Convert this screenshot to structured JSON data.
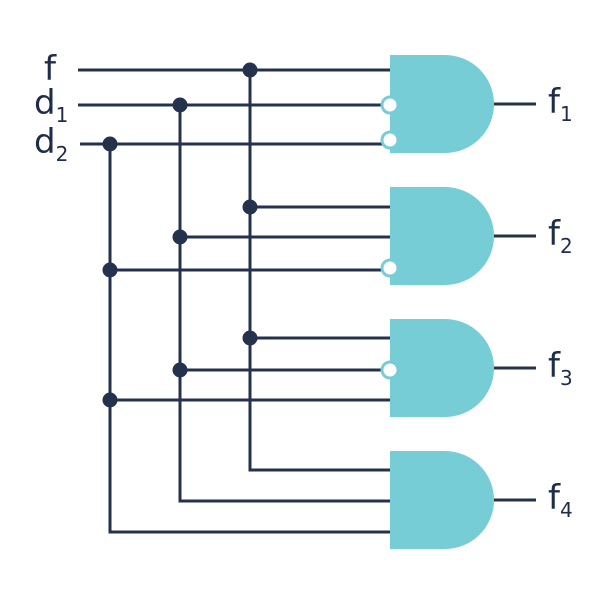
{
  "colors": {
    "wire": "#24324d",
    "gate": "#76cdd6",
    "bubble": "#ffffff"
  },
  "inputs": [
    {
      "name": "f",
      "sub": ""
    },
    {
      "name": "d",
      "sub": "1"
    },
    {
      "name": "d",
      "sub": "2"
    }
  ],
  "outputs": [
    {
      "name": "f",
      "sub": "1"
    },
    {
      "name": "f",
      "sub": "2"
    },
    {
      "name": "f",
      "sub": "3"
    },
    {
      "name": "f",
      "sub": "4"
    }
  ],
  "gates": [
    {
      "type": "AND",
      "output": "f1",
      "inputs": [
        {
          "signal": "f",
          "inverted": false
        },
        {
          "signal": "d1",
          "inverted": true
        },
        {
          "signal": "d2",
          "inverted": true
        }
      ]
    },
    {
      "type": "AND",
      "output": "f2",
      "inputs": [
        {
          "signal": "f",
          "inverted": false
        },
        {
          "signal": "d1",
          "inverted": false
        },
        {
          "signal": "d2",
          "inverted": true
        }
      ]
    },
    {
      "type": "AND",
      "output": "f3",
      "inputs": [
        {
          "signal": "f",
          "inverted": false
        },
        {
          "signal": "d1",
          "inverted": true
        },
        {
          "signal": "d2",
          "inverted": false
        }
      ]
    },
    {
      "type": "AND",
      "output": "f4",
      "inputs": [
        {
          "signal": "f",
          "inverted": false
        },
        {
          "signal": "d1",
          "inverted": false
        },
        {
          "signal": "d2",
          "inverted": false
        }
      ]
    }
  ]
}
